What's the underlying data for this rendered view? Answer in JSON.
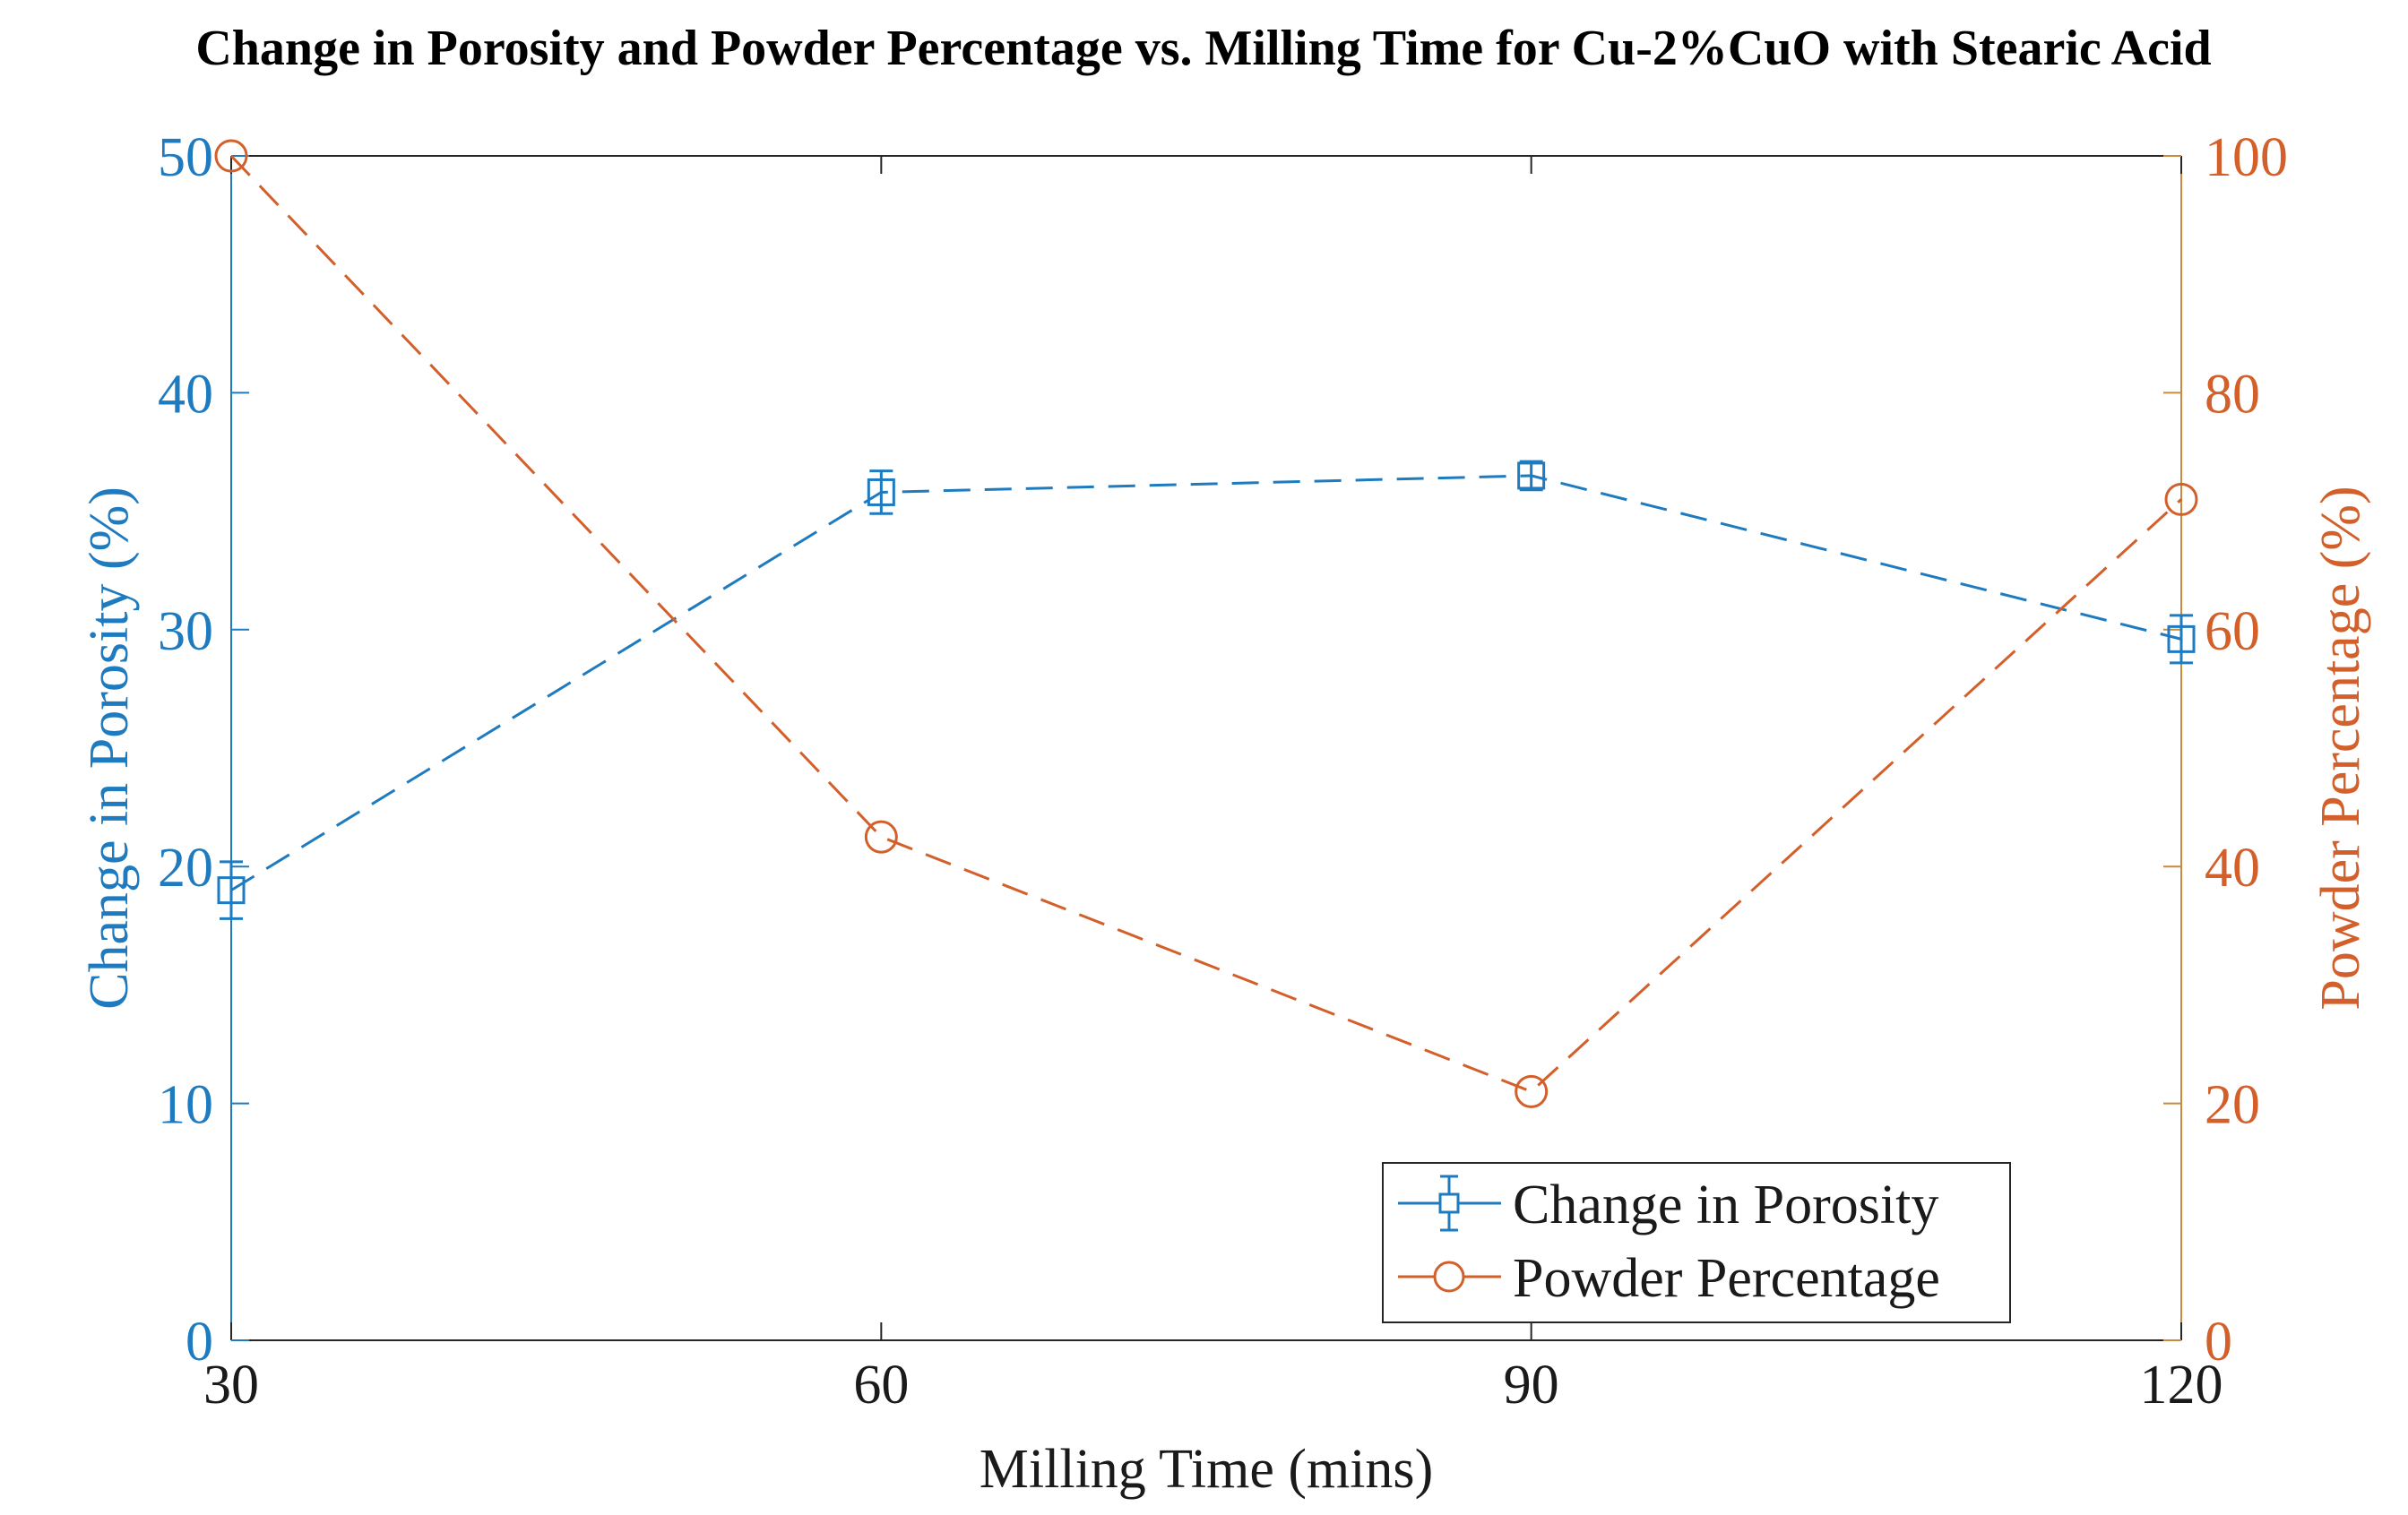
{
  "chart_data": {
    "type": "line",
    "title": "Change in Porosity and Powder Percentage vs. Milling Time for Cu-2%CuO with Stearic Acid",
    "xlabel": "Milling Time (mins)",
    "ylabel_left": "Change in Porosity (%)",
    "ylabel_right": "Powder Percentage (%)",
    "x": [
      30,
      60,
      90,
      120
    ],
    "xlim": [
      30,
      120
    ],
    "xticks": [
      30,
      60,
      90,
      120
    ],
    "ylim_left": [
      0,
      50
    ],
    "yticks_left": [
      0,
      10,
      20,
      30,
      40,
      50
    ],
    "ylim_right": [
      0,
      100
    ],
    "yticks_right": [
      0,
      20,
      40,
      60,
      80,
      100
    ],
    "grid": false,
    "legend_position": "bottom-right",
    "series": [
      {
        "name": "Change in Porosity",
        "axis": "left",
        "marker": "square",
        "line_style": "dashed",
        "error_bars": true,
        "values": [
          19.0,
          35.8,
          36.5,
          29.6
        ],
        "errors": [
          1.2,
          0.9,
          0.6,
          1.0
        ]
      },
      {
        "name": "Powder Percentage",
        "axis": "right",
        "marker": "circle",
        "line_style": "dashed",
        "error_bars": false,
        "values": [
          100,
          42.5,
          21,
          71
        ]
      }
    ],
    "colors": {
      "porosity": "#1f7bbf",
      "powder": "#d35f2a",
      "axis_left": "#1f7bbf",
      "axis_right": "#c98a3c",
      "frame": "#262626"
    }
  }
}
